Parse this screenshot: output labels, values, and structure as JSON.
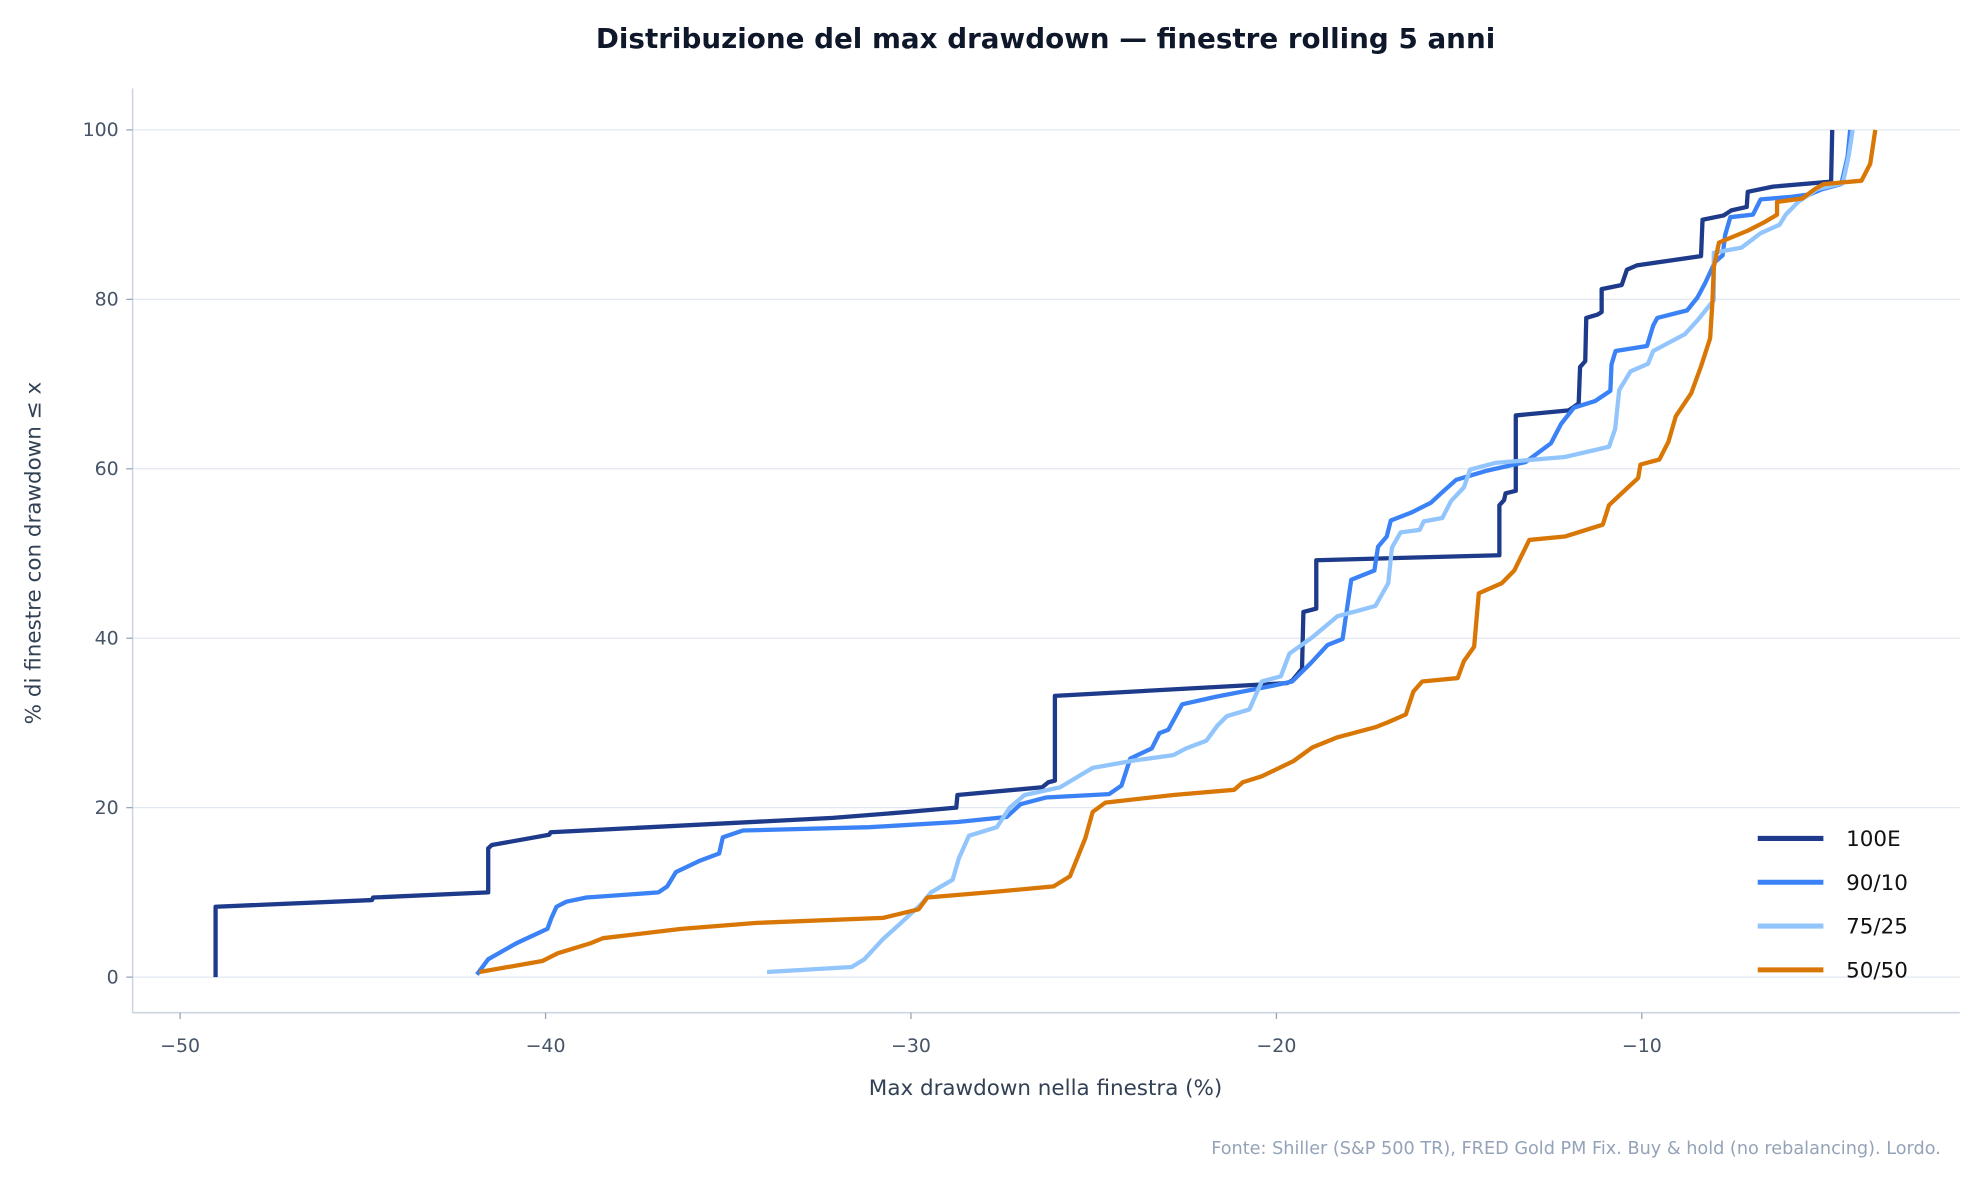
{
  "chart_data": {
    "type": "line",
    "title": "Distribuzione del max drawdown — finestre rolling 5 anni",
    "xlabel": "Max drawdown nella finestra (%)",
    "ylabel": "% di finestre con drawdown ≤ x",
    "xlim": [
      -51.3,
      -1.3
    ],
    "ylim": [
      -4.2,
      104.9
    ],
    "xticks": [
      -50,
      -40,
      -30,
      -20,
      -10
    ],
    "xtick_labels": [
      "−50",
      "−40",
      "−30",
      "−20",
      "−10"
    ],
    "yticks": [
      0,
      20,
      40,
      60,
      80,
      100
    ],
    "ytick_labels": [
      "0",
      "20",
      "40",
      "60",
      "80",
      "100"
    ],
    "grid": "horizontal",
    "legend_position": "bottom-right",
    "source": "Fonte: Shiller (S&P 500 TR), FRED Gold PM Fix. Buy & hold (no rebalancing). Lordo.",
    "series": [
      {
        "name": "100E",
        "color": "#1e3a8a",
        "points": [
          [
            -49.03,
            0
          ],
          [
            -49.03,
            8.3
          ],
          [
            -44.75,
            9.1
          ],
          [
            -44.72,
            9.4
          ],
          [
            -41.57,
            10
          ],
          [
            -41.57,
            15.2
          ],
          [
            -41.47,
            15.6
          ],
          [
            -39.9,
            16.8
          ],
          [
            -39.86,
            17.1
          ],
          [
            -32.14,
            18.8
          ],
          [
            -30.07,
            19.5
          ],
          [
            -28.76,
            20
          ],
          [
            -28.73,
            21.5
          ],
          [
            -26.41,
            22.4
          ],
          [
            -26.24,
            23
          ],
          [
            -26.06,
            23.2
          ],
          [
            -26.06,
            33.2
          ],
          [
            -19.71,
            34.7
          ],
          [
            -19.57,
            35
          ],
          [
            -19.3,
            36.4
          ],
          [
            -19.26,
            43.1
          ],
          [
            -18.91,
            43.5
          ],
          [
            -18.91,
            49.2
          ],
          [
            -13.9,
            49.8
          ],
          [
            -13.9,
            55.7
          ],
          [
            -13.77,
            56.3
          ],
          [
            -13.73,
            57.1
          ],
          [
            -13.45,
            57.4
          ],
          [
            -13.45,
            66.3
          ],
          [
            -12.0,
            66.9
          ],
          [
            -11.73,
            67.7
          ],
          [
            -11.69,
            72
          ],
          [
            -11.55,
            72.7
          ],
          [
            -11.52,
            77.8
          ],
          [
            -11.21,
            78.2
          ],
          [
            -11.1,
            78.5
          ],
          [
            -11.1,
            81.2
          ],
          [
            -10.55,
            81.7
          ],
          [
            -10.41,
            83.5
          ],
          [
            -10.14,
            84
          ],
          [
            -8.38,
            85.1
          ],
          [
            -8.34,
            89.4
          ],
          [
            -7.76,
            89.9
          ],
          [
            -7.55,
            90.5
          ],
          [
            -7.13,
            90.9
          ],
          [
            -7.1,
            92.7
          ],
          [
            -6.41,
            93.3
          ],
          [
            -4.82,
            93.9
          ],
          [
            -4.79,
            100
          ]
        ]
      },
      {
        "name": "90/10",
        "color": "#3b82f6",
        "points": [
          [
            -41.88,
            0.3
          ],
          [
            -41.57,
            2.1
          ],
          [
            -40.8,
            4
          ],
          [
            -39.95,
            5.7
          ],
          [
            -39.84,
            7
          ],
          [
            -39.7,
            8.3
          ],
          [
            -39.43,
            8.9
          ],
          [
            -38.88,
            9.4
          ],
          [
            -36.91,
            10
          ],
          [
            -36.67,
            10.7
          ],
          [
            -36.43,
            12.4
          ],
          [
            -35.8,
            13.7
          ],
          [
            -35.25,
            14.6
          ],
          [
            -35.15,
            16.5
          ],
          [
            -34.6,
            17.3
          ],
          [
            -31.14,
            17.7
          ],
          [
            -28.73,
            18.3
          ],
          [
            -27.38,
            18.9
          ],
          [
            -27.0,
            20.4
          ],
          [
            -26.31,
            21.2
          ],
          [
            -24.58,
            21.6
          ],
          [
            -24.24,
            22.6
          ],
          [
            -24.0,
            25.8
          ],
          [
            -23.41,
            27
          ],
          [
            -23.2,
            28.8
          ],
          [
            -22.96,
            29.2
          ],
          [
            -22.58,
            32.2
          ],
          [
            -21.64,
            33.1
          ],
          [
            -20.09,
            34.4
          ],
          [
            -19.57,
            34.9
          ],
          [
            -19.05,
            37.1
          ],
          [
            -18.6,
            39.2
          ],
          [
            -18.19,
            39.9
          ],
          [
            -17.95,
            46.9
          ],
          [
            -17.32,
            48
          ],
          [
            -17.22,
            50.8
          ],
          [
            -16.98,
            52
          ],
          [
            -16.87,
            53.9
          ],
          [
            -16.32,
            54.8
          ],
          [
            -15.77,
            56
          ],
          [
            -15.42,
            57.4
          ],
          [
            -15.08,
            58.7
          ],
          [
            -14.22,
            59.8
          ],
          [
            -13.18,
            60.8
          ],
          [
            -12.49,
            63
          ],
          [
            -12.21,
            65.3
          ],
          [
            -11.86,
            67.2
          ],
          [
            -11.28,
            68
          ],
          [
            -10.86,
            69.2
          ],
          [
            -10.83,
            72.3
          ],
          [
            -10.72,
            73.9
          ],
          [
            -9.86,
            74.5
          ],
          [
            -9.69,
            76.9
          ],
          [
            -9.58,
            77.8
          ],
          [
            -8.76,
            78.7
          ],
          [
            -8.48,
            80.2
          ],
          [
            -8.27,
            81.9
          ],
          [
            -8.0,
            84.4
          ],
          [
            -7.79,
            85.2
          ],
          [
            -7.72,
            87.6
          ],
          [
            -7.58,
            89.7
          ],
          [
            -6.96,
            90
          ],
          [
            -6.75,
            91.8
          ],
          [
            -5.92,
            92.1
          ],
          [
            -5.41,
            92.4
          ],
          [
            -5.06,
            93
          ],
          [
            -4.54,
            93.6
          ],
          [
            -4.37,
            96.9
          ],
          [
            -4.3,
            100
          ]
        ]
      },
      {
        "name": "75/25",
        "color": "#93c5fd",
        "points": [
          [
            -33.94,
            0.6
          ],
          [
            -31.62,
            1.2
          ],
          [
            -31.28,
            2.1
          ],
          [
            -30.76,
            4.5
          ],
          [
            -30.35,
            6.1
          ],
          [
            -29.72,
            8.6
          ],
          [
            -29.45,
            10
          ],
          [
            -28.86,
            11.5
          ],
          [
            -28.69,
            14
          ],
          [
            -28.41,
            16.7
          ],
          [
            -27.65,
            17.7
          ],
          [
            -27.3,
            20
          ],
          [
            -26.89,
            21.5
          ],
          [
            -25.92,
            22.4
          ],
          [
            -25.03,
            24.7
          ],
          [
            -23.85,
            25.6
          ],
          [
            -22.82,
            26.2
          ],
          [
            -22.47,
            27
          ],
          [
            -21.92,
            27.9
          ],
          [
            -21.61,
            29.7
          ],
          [
            -21.36,
            30.8
          ],
          [
            -20.74,
            31.6
          ],
          [
            -20.4,
            34.9
          ],
          [
            -19.88,
            35.5
          ],
          [
            -19.64,
            38.2
          ],
          [
            -19.02,
            40.1
          ],
          [
            -18.33,
            42.6
          ],
          [
            -17.81,
            43.2
          ],
          [
            -17.29,
            43.8
          ],
          [
            -16.94,
            46.5
          ],
          [
            -16.84,
            50.7
          ],
          [
            -16.6,
            52.5
          ],
          [
            -16.08,
            52.8
          ],
          [
            -15.97,
            53.8
          ],
          [
            -15.46,
            54.2
          ],
          [
            -15.22,
            56.2
          ],
          [
            -14.87,
            57.8
          ],
          [
            -14.7,
            59.9
          ],
          [
            -14.01,
            60.7
          ],
          [
            -12.11,
            61.4
          ],
          [
            -10.9,
            62.6
          ],
          [
            -10.73,
            64.7
          ],
          [
            -10.62,
            69.3
          ],
          [
            -10.31,
            71.5
          ],
          [
            -9.83,
            72.4
          ],
          [
            -9.69,
            73.9
          ],
          [
            -8.82,
            75.9
          ],
          [
            -8.48,
            77.5
          ],
          [
            -8.03,
            79.9
          ],
          [
            -8.03,
            85.5
          ],
          [
            -7.27,
            86.1
          ],
          [
            -6.75,
            87.8
          ],
          [
            -6.23,
            88.8
          ],
          [
            -6.06,
            90
          ],
          [
            -5.72,
            91.5
          ],
          [
            -5.2,
            93
          ],
          [
            -4.5,
            93.7
          ],
          [
            -4.34,
            96.9
          ],
          [
            -4.23,
            100
          ]
        ]
      },
      {
        "name": "50/50",
        "color": "#d97706",
        "points": [
          [
            -41.81,
            0.6
          ],
          [
            -40.09,
            1.9
          ],
          [
            -39.67,
            2.8
          ],
          [
            -38.77,
            4
          ],
          [
            -38.43,
            4.6
          ],
          [
            -36.29,
            5.7
          ],
          [
            -34.22,
            6.4
          ],
          [
            -30.76,
            7
          ],
          [
            -29.79,
            8
          ],
          [
            -29.55,
            9.4
          ],
          [
            -27.65,
            10.1
          ],
          [
            -26.1,
            10.7
          ],
          [
            -25.65,
            11.9
          ],
          [
            -25.23,
            16.4
          ],
          [
            -25.03,
            19.5
          ],
          [
            -24.68,
            20.6
          ],
          [
            -22.82,
            21.5
          ],
          [
            -21.16,
            22.1
          ],
          [
            -20.92,
            23
          ],
          [
            -20.4,
            23.7
          ],
          [
            -19.53,
            25.5
          ],
          [
            -19.02,
            27.1
          ],
          [
            -18.33,
            28.3
          ],
          [
            -17.29,
            29.5
          ],
          [
            -16.94,
            30.1
          ],
          [
            -16.46,
            31
          ],
          [
            -16.25,
            33.7
          ],
          [
            -16.01,
            34.9
          ],
          [
            -15.04,
            35.3
          ],
          [
            -14.87,
            37.3
          ],
          [
            -14.59,
            39
          ],
          [
            -14.46,
            45.3
          ],
          [
            -13.83,
            46.5
          ],
          [
            -13.49,
            48
          ],
          [
            -13.08,
            51.6
          ],
          [
            -12.11,
            52
          ],
          [
            -11.07,
            53.4
          ],
          [
            -10.9,
            55.7
          ],
          [
            -10.38,
            57.8
          ],
          [
            -10.1,
            58.9
          ],
          [
            -10.04,
            60.5
          ],
          [
            -9.52,
            61.1
          ],
          [
            -9.27,
            63.2
          ],
          [
            -9.07,
            66.2
          ],
          [
            -8.65,
            68.9
          ],
          [
            -8.38,
            72.1
          ],
          [
            -8.13,
            75.4
          ],
          [
            -8.07,
            79.6
          ],
          [
            -8.03,
            83.8
          ],
          [
            -7.89,
            86.7
          ],
          [
            -7.1,
            88.1
          ],
          [
            -6.65,
            89.1
          ],
          [
            -6.3,
            90
          ],
          [
            -6.3,
            91.5
          ],
          [
            -5.61,
            91.9
          ],
          [
            -5.27,
            93
          ],
          [
            -5.03,
            93.6
          ],
          [
            -3.99,
            94
          ],
          [
            -3.75,
            96
          ],
          [
            -3.61,
            100
          ]
        ]
      }
    ]
  }
}
